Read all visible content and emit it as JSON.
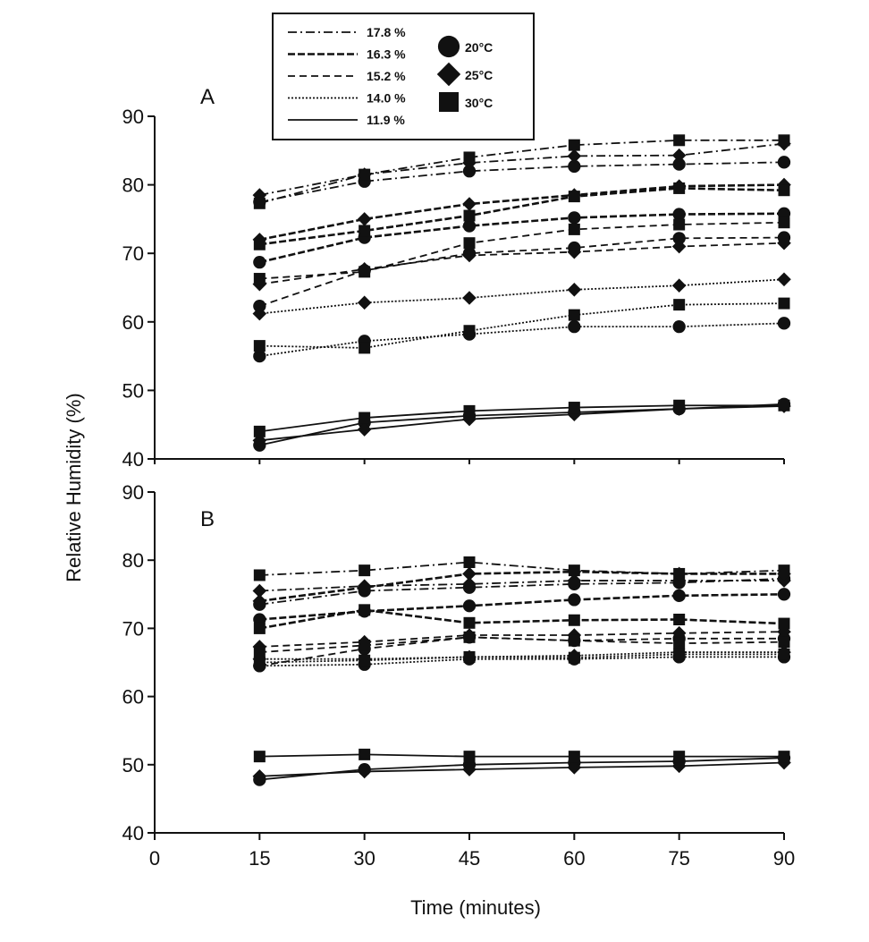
{
  "chart_data": {
    "type": "line",
    "xlabel": "Time (minutes)",
    "ylabel": "Relative Humidity (%)",
    "x": [
      15,
      30,
      45,
      60,
      75,
      90
    ],
    "xlim": [
      0,
      90
    ],
    "xticks": [
      0,
      15,
      30,
      45,
      60,
      75,
      90
    ],
    "ylim": [
      40,
      90
    ],
    "yticks": [
      40,
      50,
      60,
      70,
      80,
      90
    ],
    "grid": false,
    "legend": {
      "placement": "top",
      "moisture": [
        {
          "label": "17.8 %",
          "dash": "dashdot"
        },
        {
          "label": "16.3 %",
          "dash": "longdash"
        },
        {
          "label": "15.2 %",
          "dash": "dash"
        },
        {
          "label": "14.0 %",
          "dash": "dot"
        },
        {
          "label": "11.9 %",
          "dash": "solid"
        }
      ],
      "temperature": [
        {
          "label": "20°C",
          "marker": "circle"
        },
        {
          "label": "25°C",
          "marker": "diamond"
        },
        {
          "label": "30°C",
          "marker": "square"
        }
      ]
    },
    "panels": [
      {
        "label": "A",
        "series": [
          {
            "moisture": "17.8 %",
            "temperature": "20°C",
            "values": [
              77.5,
              80.5,
              82,
              82.7,
              83,
              83.3
            ]
          },
          {
            "moisture": "17.8 %",
            "temperature": "25°C",
            "values": [
              78.5,
              81.5,
              83.2,
              84.2,
              84.3,
              86
            ]
          },
          {
            "moisture": "17.8 %",
            "temperature": "30°C",
            "values": [
              77.3,
              81.5,
              84,
              85.8,
              86.5,
              86.5
            ]
          },
          {
            "moisture": "16.3 %",
            "temperature": "20°C",
            "values": [
              68.7,
              72.3,
              74,
              75.2,
              75.7,
              75.8
            ]
          },
          {
            "moisture": "16.3 %",
            "temperature": "25°C",
            "values": [
              72,
              75,
              77.2,
              78.5,
              79.8,
              80
            ]
          },
          {
            "moisture": "16.3 %",
            "temperature": "30°C",
            "values": [
              71.3,
              73.3,
              75.5,
              78.3,
              79.5,
              79.2
            ]
          },
          {
            "moisture": "15.2 %",
            "temperature": "20°C",
            "values": [
              62.3,
              67.5,
              70,
              70.8,
              72.2,
              72.3
            ]
          },
          {
            "moisture": "15.2 %",
            "temperature": "25°C",
            "values": [
              65.5,
              67.7,
              69.7,
              70.2,
              71,
              71.5
            ]
          },
          {
            "moisture": "15.2 %",
            "temperature": "30°C",
            "values": [
              66.3,
              67.3,
              71.5,
              73.5,
              74.2,
              74.5
            ]
          },
          {
            "moisture": "14.0 %",
            "temperature": "20°C",
            "values": [
              55,
              57.2,
              58.2,
              59.3,
              59.3,
              59.8
            ]
          },
          {
            "moisture": "14.0 %",
            "temperature": "25°C",
            "values": [
              61.2,
              62.8,
              63.5,
              64.7,
              65.3,
              66.2
            ]
          },
          {
            "moisture": "14.0 %",
            "temperature": "30°C",
            "values": [
              56.5,
              56.2,
              58.7,
              61,
              62.5,
              62.7
            ]
          },
          {
            "moisture": "11.9 %",
            "temperature": "20°C",
            "values": [
              42,
              45.3,
              46.3,
              46.8,
              47.3,
              48
            ]
          },
          {
            "moisture": "11.9 %",
            "temperature": "25°C",
            "values": [
              42.7,
              44.3,
              45.8,
              46.5,
              47.3,
              47.7
            ]
          },
          {
            "moisture": "11.9 %",
            "temperature": "30°C",
            "values": [
              44,
              46,
              47,
              47.5,
              47.8,
              47.8
            ]
          }
        ]
      },
      {
        "label": "B",
        "series": [
          {
            "moisture": "17.8 %",
            "temperature": "20°C",
            "values": [
              73.5,
              75.5,
              76,
              76.5,
              76.7,
              77.3
            ]
          },
          {
            "moisture": "17.8 %",
            "temperature": "25°C",
            "values": [
              75.5,
              76.2,
              76.5,
              77,
              77,
              77
            ]
          },
          {
            "moisture": "17.8 %",
            "temperature": "30°C",
            "values": [
              77.8,
              78.5,
              79.7,
              78.5,
              78,
              78.5
            ]
          },
          {
            "moisture": "16.3 %",
            "temperature": "20°C",
            "values": [
              71.3,
              72.5,
              73.3,
              74.2,
              74.8,
              75
            ]
          },
          {
            "moisture": "16.3 %",
            "temperature": "25°C",
            "values": [
              74,
              76,
              78,
              78.3,
              78,
              78
            ]
          },
          {
            "moisture": "16.3 %",
            "temperature": "30°C",
            "values": [
              70,
              72.7,
              70.8,
              71.2,
              71.3,
              70.7
            ]
          },
          {
            "moisture": "15.2 %",
            "temperature": "20°C",
            "values": [
              64.5,
              67,
              68.7,
              68.2,
              68.5,
              68.5
            ]
          },
          {
            "moisture": "15.2 %",
            "temperature": "25°C",
            "values": [
              67.3,
              68,
              69,
              69,
              69.3,
              69.5
            ]
          },
          {
            "moisture": "15.2 %",
            "temperature": "30°C",
            "values": [
              66.5,
              67.5,
              68.7,
              68.2,
              67.8,
              68
            ]
          },
          {
            "moisture": "14.0 %",
            "temperature": "20°C",
            "values": [
              64.5,
              64.7,
              65.5,
              65.5,
              65.8,
              65.8
            ]
          },
          {
            "moisture": "14.0 %",
            "temperature": "25°C",
            "values": [
              65.5,
              65.5,
              65.8,
              66,
              66.5,
              66.5
            ]
          },
          {
            "moisture": "14.0 %",
            "temperature": "30°C",
            "values": [
              65,
              65.3,
              65.8,
              65.7,
              66.2,
              66.2
            ]
          },
          {
            "moisture": "11.9 %",
            "temperature": "20°C",
            "values": [
              47.8,
              49.3,
              50,
              50.3,
              50.5,
              51
            ]
          },
          {
            "moisture": "11.9 %",
            "temperature": "25°C",
            "values": [
              48.3,
              49,
              49.3,
              49.6,
              49.8,
              50.3
            ]
          },
          {
            "moisture": "11.9 %",
            "temperature": "30°C",
            "values": [
              51.2,
              51.5,
              51.2,
              51.2,
              51.2,
              51.2
            ]
          }
        ]
      }
    ]
  }
}
